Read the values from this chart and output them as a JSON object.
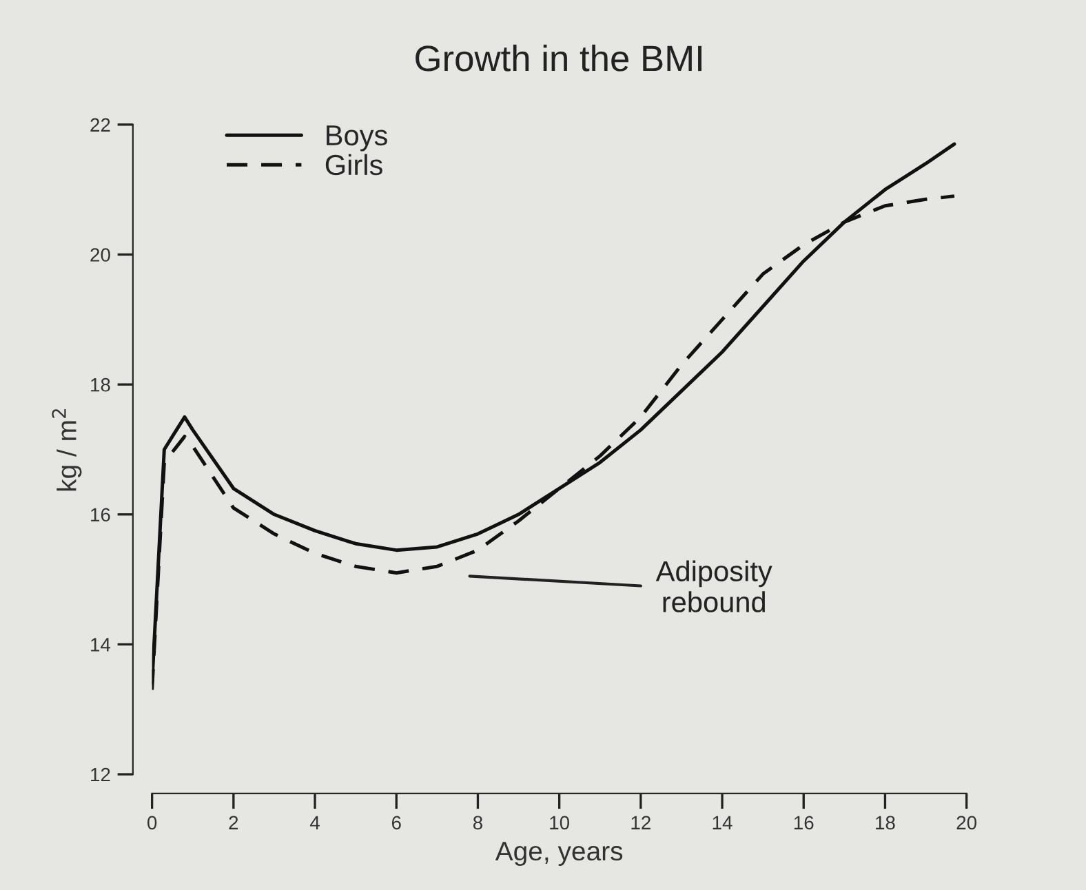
{
  "chart_data": {
    "type": "line",
    "title": "Growth in the BMI",
    "xlabel": "Age, years",
    "ylabel": "kg / m$^{2}$",
    "series": [
      {
        "name": "Boys",
        "color": "#111111",
        "line_style": "solid",
        "x": [
          0,
          0.3,
          0.8,
          1,
          2,
          3,
          4,
          5,
          6,
          7,
          8,
          9,
          10,
          11,
          12,
          13,
          14,
          15,
          16,
          17,
          18,
          19,
          19.7
        ],
        "values": [
          13.4,
          17.0,
          17.5,
          17.3,
          16.4,
          16.0,
          15.75,
          15.55,
          15.45,
          15.5,
          15.7,
          16.0,
          16.4,
          16.8,
          17.3,
          17.9,
          18.5,
          19.2,
          19.9,
          20.5,
          21.0,
          21.4,
          21.7
        ]
      },
      {
        "name": "Girls",
        "color": "#111111",
        "line_style": "dashed",
        "x": [
          0,
          0.3,
          0.8,
          1,
          2,
          3,
          4,
          5,
          6,
          7,
          8,
          9,
          10,
          11,
          12,
          13,
          14,
          15,
          16,
          17,
          18,
          19,
          19.7
        ],
        "values": [
          13.3,
          16.8,
          17.2,
          17.05,
          16.1,
          15.7,
          15.4,
          15.2,
          15.1,
          15.2,
          15.45,
          15.9,
          16.4,
          16.9,
          17.5,
          18.3,
          19.0,
          19.7,
          20.15,
          20.5,
          20.75,
          20.85,
          20.9
        ]
      }
    ],
    "annotations": [
      "Adiposity\nrebound"
    ],
    "xlim": [
      0,
      20
    ],
    "xticks": [
      0,
      2,
      4,
      6,
      8,
      10,
      12,
      14,
      16,
      18,
      20
    ],
    "ylim": [
      12,
      22
    ],
    "yticks": [
      12,
      14,
      16,
      18,
      20,
      22
    ],
    "grid": false,
    "legend": "top left",
    "marker": "none"
  }
}
